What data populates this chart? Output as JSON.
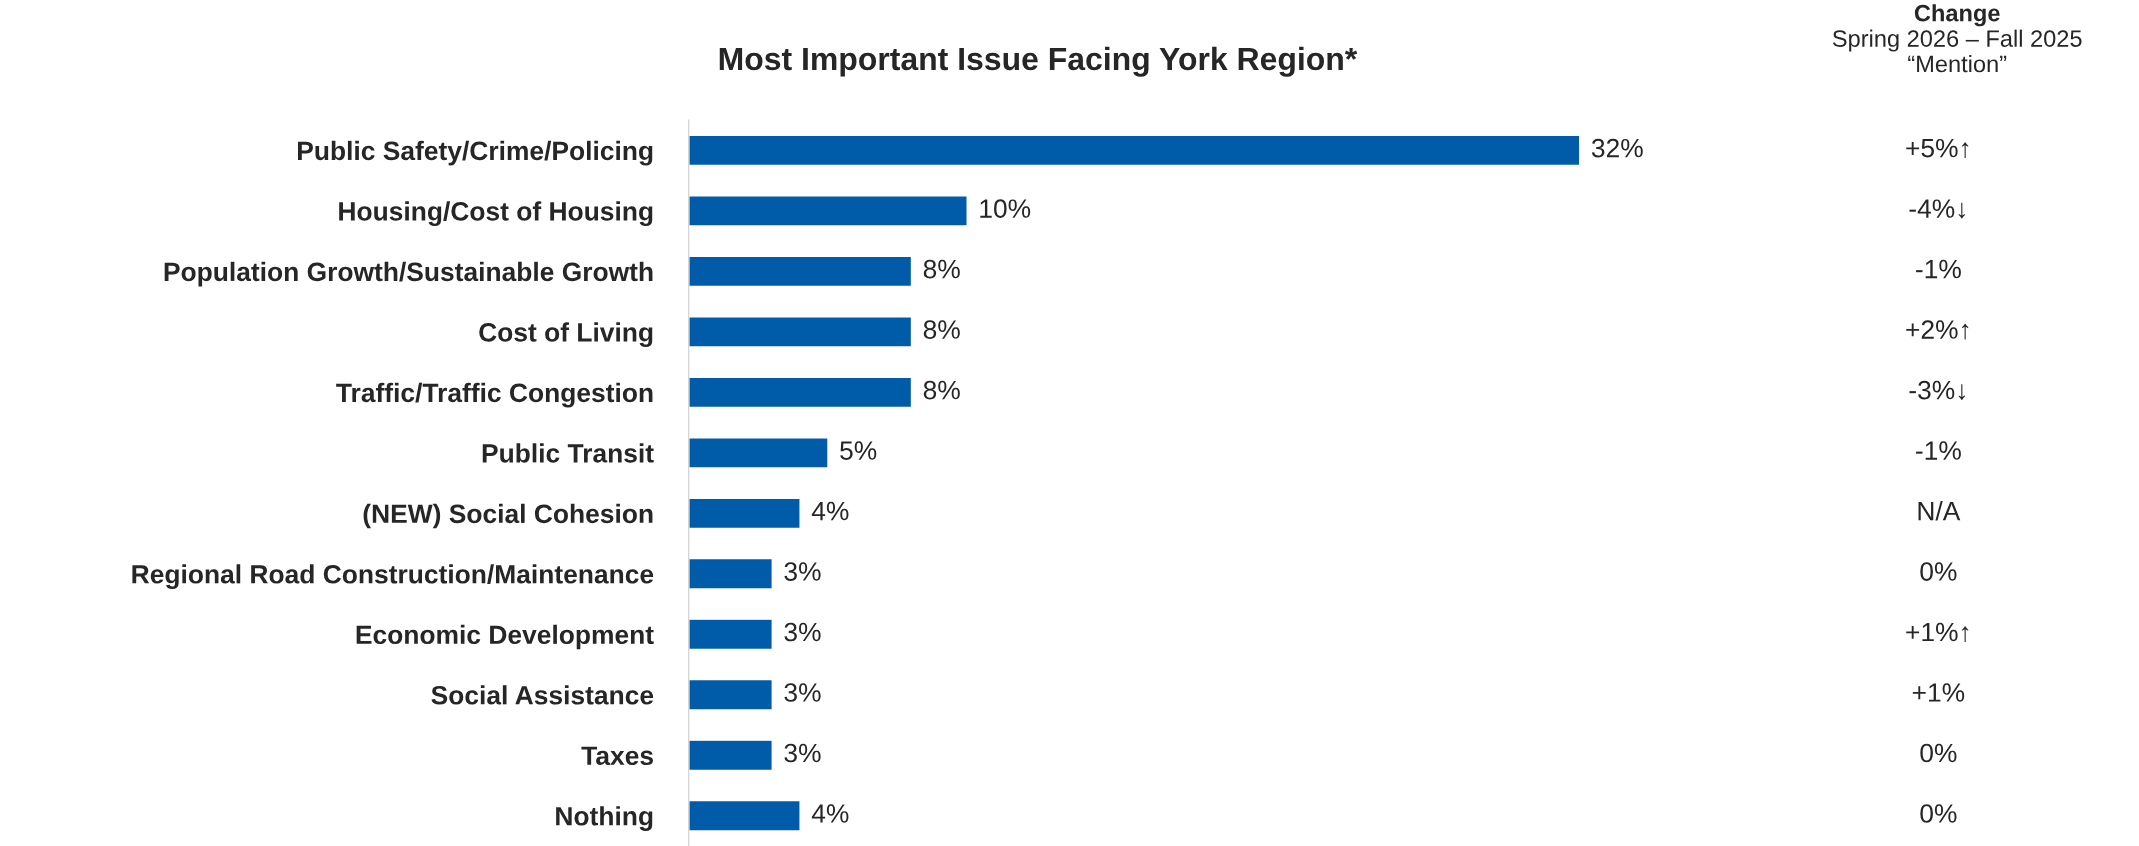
{
  "chart_data": {
    "type": "bar",
    "orientation": "horizontal",
    "title": "Most Important Issue Facing York Region*",
    "categories": [
      "Public Safety/Crime/Policing",
      "Housing/Cost of Housing",
      "Population Growth/Sustainable Growth",
      "Cost of Living",
      "Traffic/Traffic Congestion",
      "Public Transit",
      "(NEW) Social Cohesion",
      "Regional Road Construction/Maintenance",
      "Economic Development",
      "Social Assistance",
      "Taxes",
      "Nothing"
    ],
    "values": [
      32,
      10,
      8,
      8,
      8,
      5,
      4,
      3,
      3,
      3,
      3,
      4
    ],
    "color": "#005ca9",
    "value_labels": [
      "32%",
      "10%",
      "8%",
      "8%",
      "8%",
      "5%",
      "4%",
      "3%",
      "3%",
      "3%",
      "3%",
      "4%"
    ],
    "annotations": [
      "Change",
      "Spring 2026 – Fall 2025",
      "“Mention”",
      "+5%↑",
      "-4%↓",
      "-1%",
      "+2%↑",
      "-3%↓",
      "-1%",
      "N/A",
      "0%",
      "+1%↑",
      "+1%",
      "0%",
      "0%"
    ]
  }
}
